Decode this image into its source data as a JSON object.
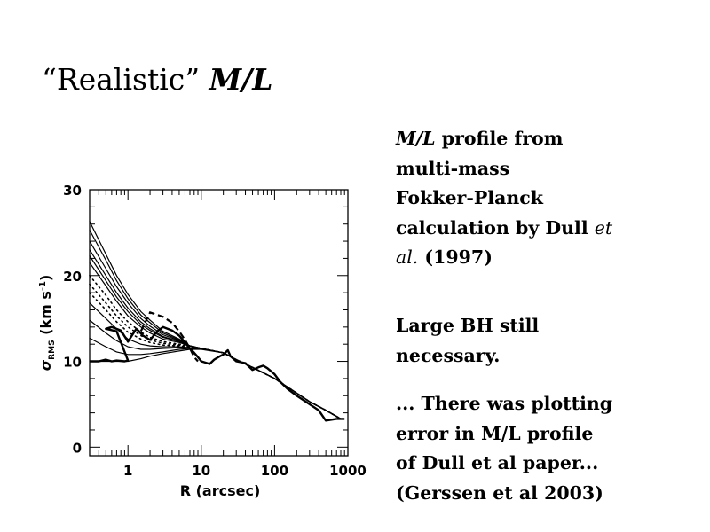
{
  "slide": {
    "title_quoted": "“Realistic”",
    "title_math": "M/L",
    "paragraph1": {
      "math": "M/L",
      "line1_rest": " profile from",
      "line2": "multi-mass",
      "line3": "Fokker-Planck",
      "line4": "calculation by Dull ",
      "line4_italic": "et",
      "line5_italic": "al.",
      "line5_rest": " (1997)"
    },
    "paragraph2": [
      "Large BH still",
      "necessary."
    ],
    "paragraph3": [
      "... There was plotting",
      "error in M/L profile",
      "of Dull et al paper...",
      "(Gerssen et al 2003)"
    ]
  },
  "chart_data": {
    "type": "line",
    "xlabel": "R (arcsec)",
    "ylabel": "σ_RMS (km s⁻¹)",
    "ylabel_main": "σ",
    "ylabel_sub": "RMS",
    "ylabel_units": "(km s",
    "ylabel_exp": "-1",
    "ylabel_close": ")",
    "xscale": "log",
    "xlim": [
      0.3,
      1000
    ],
    "ylim": [
      -1,
      30
    ],
    "xticks": [
      1,
      10,
      100,
      1000
    ],
    "xtick_labels": [
      "1",
      "10",
      "100",
      "1000"
    ],
    "yticks": [
      0,
      10,
      20,
      30
    ],
    "ytick_labels": [
      "0",
      "10",
      "20",
      "30"
    ],
    "x": [
      0.3,
      0.5,
      0.7,
      1,
      1.5,
      2,
      3,
      5,
      7,
      10,
      20,
      30,
      50,
      100,
      200,
      300,
      500,
      800
    ],
    "models": [
      {
        "style": "solid",
        "values": [
          26.3,
          22.5,
          20,
          17.8,
          15.8,
          14.8,
          13.5,
          12.6,
          11.8,
          11.5,
          11,
          10.2,
          9.3,
          8,
          6.3,
          5.3,
          4.3,
          3.3
        ]
      },
      {
        "style": "solid",
        "values": [
          25.3,
          21.8,
          19.4,
          17.3,
          15.4,
          14.5,
          13.3,
          12.5,
          11.8,
          11.5,
          11,
          10.2,
          9.3,
          8,
          6.3,
          5.3,
          4.3,
          3.3
        ]
      },
      {
        "style": "solid",
        "values": [
          24,
          20.8,
          18.7,
          16.8,
          15,
          14.1,
          13.1,
          12.4,
          11.8,
          11.5,
          11,
          10.2,
          9.3,
          8,
          6.3,
          5.3,
          4.3,
          3.3
        ]
      },
      {
        "style": "solid",
        "values": [
          23,
          20,
          18,
          16.2,
          14.6,
          13.8,
          12.9,
          12.3,
          11.8,
          11.5,
          11,
          10.2,
          9.3,
          8,
          6.3,
          5.3,
          4.3,
          3.3
        ]
      },
      {
        "style": "solid",
        "values": [
          22.3,
          19.4,
          17.5,
          15.8,
          14.3,
          13.6,
          12.8,
          12.3,
          11.8,
          11.5,
          11,
          10.2,
          9.3,
          8,
          6.3,
          5.3,
          4.3,
          3.3
        ]
      },
      {
        "style": "solid",
        "values": [
          21.5,
          18.8,
          17,
          15.3,
          14,
          13.3,
          12.6,
          12.2,
          11.8,
          11.5,
          11,
          10.2,
          9.3,
          8,
          6.3,
          5.3,
          4.3,
          3.3
        ]
      },
      {
        "style": "dotted",
        "values": [
          20,
          17.7,
          16,
          14.6,
          13.4,
          12.8,
          12.3,
          12,
          11.8,
          11.5,
          11,
          10.2,
          9.3,
          8,
          6.3,
          5.3,
          4.3,
          3.3
        ]
      },
      {
        "style": "dotted",
        "values": [
          19,
          16.8,
          15.3,
          14,
          13,
          12.5,
          12.1,
          11.9,
          11.8,
          11.5,
          11,
          10.2,
          9.3,
          8,
          6.3,
          5.3,
          4.3,
          3.3
        ]
      },
      {
        "style": "dotted",
        "values": [
          18,
          16,
          14.6,
          13.4,
          12.6,
          12.2,
          11.9,
          11.8,
          11.7,
          11.5,
          11,
          10.2,
          9.3,
          8,
          6.3,
          5.3,
          4.3,
          3.3
        ]
      },
      {
        "style": "solid",
        "values": [
          16.8,
          15,
          13.8,
          12.6,
          12,
          11.8,
          11.7,
          11.7,
          11.6,
          11.5,
          11,
          10.2,
          9.3,
          8,
          6.3,
          5.3,
          4.3,
          3.3
        ]
      },
      {
        "style": "solid",
        "values": [
          14.8,
          13.3,
          12.4,
          11.7,
          11.4,
          11.4,
          11.5,
          11.6,
          11.6,
          11.5,
          11,
          10.2,
          9.3,
          8,
          6.3,
          5.3,
          4.3,
          3.3
        ]
      },
      {
        "style": "solid",
        "values": [
          12.7,
          11.7,
          11.1,
          10.8,
          10.8,
          10.9,
          11.1,
          11.4,
          11.5,
          11.5,
          11,
          10.2,
          9.3,
          8,
          6.3,
          5.3,
          4.3,
          3.3
        ]
      },
      {
        "style": "solid",
        "values": [
          10,
          10,
          10,
          10,
          10.3,
          10.6,
          10.9,
          11.2,
          11.4,
          11.4,
          11,
          10.2,
          9.3,
          8,
          6.3,
          5.3,
          4.3,
          3.3
        ]
      }
    ],
    "data_series": {
      "style": "thick",
      "x": [
        0.3,
        0.4,
        0.5,
        0.6,
        0.7,
        0.9,
        1.0,
        0.7,
        0.5,
        0.6,
        0.8,
        1.0,
        1.3,
        1.6,
        2,
        2.5,
        3,
        4,
        5,
        6,
        7,
        8,
        9,
        10,
        12,
        13,
        15,
        18,
        20,
        23,
        25,
        30,
        40,
        50,
        60,
        70,
        80,
        100,
        120,
        150,
        200,
        300,
        400,
        500,
        700,
        900
      ],
      "y": [
        10,
        10,
        10.2,
        10,
        10.1,
        10,
        10.1,
        13.5,
        13.8,
        14,
        13.6,
        12.3,
        13.8,
        13,
        12.5,
        13.5,
        14,
        13.6,
        13,
        12.2,
        11.5,
        11,
        10.5,
        10,
        9.8,
        9.7,
        10.2,
        10.6,
        10.8,
        11.3,
        10.6,
        10,
        9.8,
        9,
        9.3,
        9.5,
        9.2,
        8.5,
        7.6,
        6.8,
        6,
        5,
        4.3,
        3.1,
        3.3,
        3.3
      ]
    },
    "dashed_series": {
      "style": "dashed",
      "x": [
        1.5,
        2,
        3,
        4,
        5,
        6,
        7,
        8,
        9
      ],
      "y": [
        13.5,
        15.7,
        15.2,
        14.5,
        13.5,
        12.5,
        11.5,
        10.5,
        10
      ]
    },
    "grid": false,
    "legend": "none"
  }
}
